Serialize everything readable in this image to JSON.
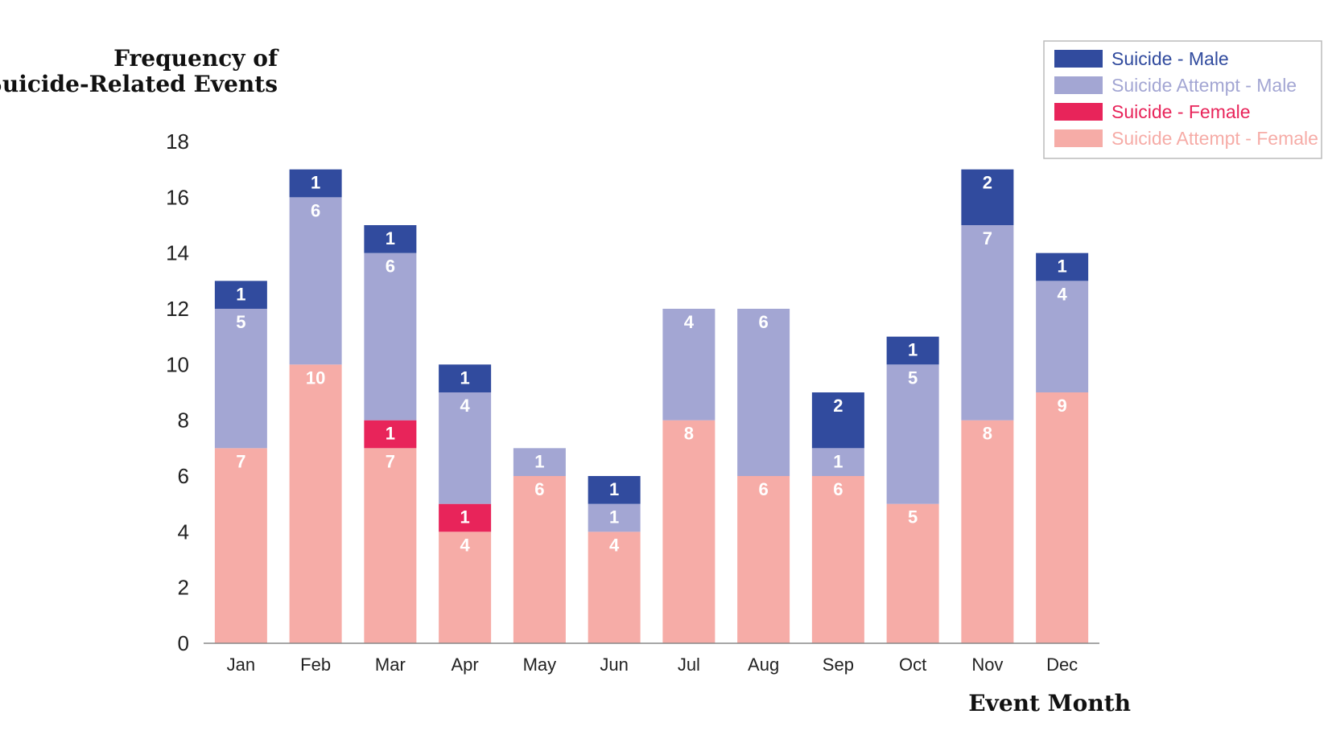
{
  "chart_data": {
    "type": "bar",
    "stacked": true,
    "title": "",
    "ylabel_lines": [
      "Frequency of",
      "Suicide-Related Events"
    ],
    "xlabel": "Event Month",
    "ylim": [
      0,
      18
    ],
    "yticks": [
      0,
      2,
      4,
      6,
      8,
      10,
      12,
      14,
      16,
      18
    ],
    "categories": [
      "Jan",
      "Feb",
      "Mar",
      "Apr",
      "May",
      "Jun",
      "Jul",
      "Aug",
      "Sep",
      "Oct",
      "Nov",
      "Dec"
    ],
    "grid": false,
    "legend_position": "top-right",
    "series": [
      {
        "name": "Suicide Attempt - Female",
        "name_parts": [
          "Suicide Attempt",
          "Female"
        ],
        "color": "#f6aca7",
        "values": [
          7,
          10,
          7,
          4,
          6,
          4,
          8,
          6,
          6,
          5,
          8,
          9
        ]
      },
      {
        "name": "Suicide - Female",
        "name_parts": [
          "Suicide",
          "Female"
        ],
        "color": "#e8245a",
        "values": [
          0,
          0,
          1,
          1,
          0,
          0,
          0,
          0,
          0,
          0,
          0,
          0
        ]
      },
      {
        "name": "Suicide Attempt - Male",
        "name_parts": [
          "Suicide Attempt",
          "Male"
        ],
        "color": "#a3a6d3",
        "values": [
          5,
          6,
          6,
          4,
          1,
          1,
          4,
          6,
          1,
          5,
          7,
          4
        ]
      },
      {
        "name": "Suicide - Male",
        "name_parts": [
          "Suicide",
          "Male"
        ],
        "color": "#314b9e",
        "values": [
          1,
          1,
          1,
          1,
          0,
          1,
          0,
          0,
          2,
          1,
          2,
          1
        ]
      }
    ],
    "legend_order": [
      3,
      2,
      1,
      0
    ]
  }
}
